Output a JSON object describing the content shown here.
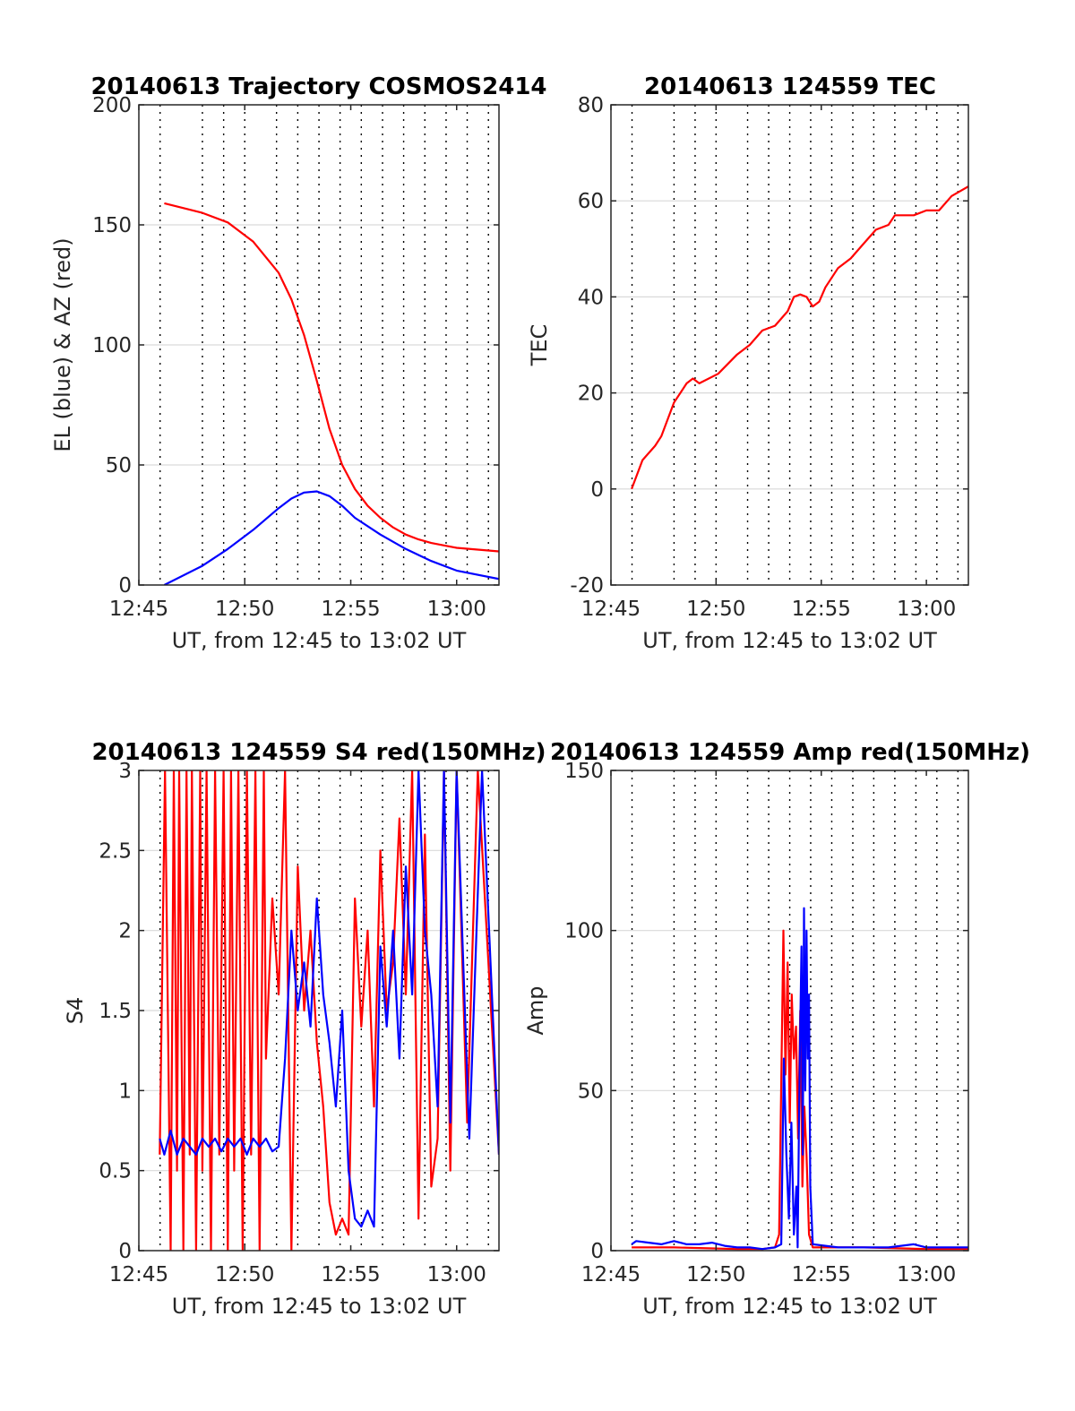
{
  "colors": {
    "red": "#ff0000",
    "blue": "#0000ff",
    "grid": "#d9d9d9",
    "dotted": "#000000",
    "axis": "#262626"
  },
  "chart_data": [
    {
      "type": "line",
      "title": "20140613 Trajectory COSMOS2414",
      "xlabel": "UT, from 12:45 to 13:02 UT",
      "ylabel": "EL (blue) & AZ (red)",
      "xlim": [
        12.75,
        13.0333
      ],
      "ylim": [
        0,
        200
      ],
      "x_ticks": [
        "12:45",
        "12:50",
        "12:55",
        "13:00"
      ],
      "y_ticks": [
        "0",
        "50",
        "100",
        "150",
        "200"
      ],
      "grid": true,
      "series": [
        {
          "color": "red",
          "x": [
            12.77,
            12.8,
            12.82,
            12.84,
            12.86,
            12.87,
            12.88,
            12.89,
            12.9,
            12.91,
            12.92,
            12.93,
            12.94,
            12.95,
            12.96,
            12.97,
            12.98,
            12.99,
            13.0,
            13.0333
          ],
          "y": [
            159,
            155,
            151,
            143,
            130,
            119,
            104,
            85,
            65,
            50,
            40,
            33,
            28,
            24,
            21,
            19,
            17.5,
            16.5,
            15.5,
            14
          ]
        },
        {
          "color": "blue",
          "x": [
            12.77,
            12.8,
            12.82,
            12.84,
            12.86,
            12.87,
            12.88,
            12.89,
            12.9,
            12.91,
            12.92,
            12.94,
            12.96,
            12.98,
            13.0,
            13.0333
          ],
          "y": [
            0,
            8,
            15,
            23,
            32,
            36,
            38.5,
            39,
            37,
            33,
            28,
            21,
            15,
            10,
            6,
            2.5
          ]
        }
      ]
    },
    {
      "type": "line",
      "title": "20140613 124559 TEC",
      "xlabel": "UT, from 12:45 to 13:02 UT",
      "ylabel": "TEC",
      "xlim": [
        12.75,
        13.0333
      ],
      "ylim": [
        -20,
        80
      ],
      "x_ticks": [
        "12:45",
        "12:50",
        "12:55",
        "13:00"
      ],
      "y_ticks": [
        "-20",
        "0",
        "20",
        "40",
        "60",
        "80"
      ],
      "grid": true,
      "series": [
        {
          "color": "red",
          "x": [
            12.7664,
            12.775,
            12.785,
            12.79,
            12.8,
            12.81,
            12.815,
            12.82,
            12.835,
            12.85,
            12.86,
            12.87,
            12.88,
            12.89,
            12.895,
            12.9,
            12.905,
            12.91,
            12.915,
            12.92,
            12.93,
            12.94,
            12.95,
            12.96,
            12.97,
            12.975,
            12.99,
            13.0,
            13.01,
            13.02,
            13.0333
          ],
          "y": [
            0,
            6,
            9,
            11,
            18,
            22,
            23,
            22,
            24,
            28,
            30,
            33,
            34,
            37,
            40,
            40.5,
            40,
            38,
            39,
            42,
            46,
            48,
            51,
            54,
            55,
            57,
            57,
            58,
            58,
            61,
            63
          ]
        }
      ]
    },
    {
      "type": "line",
      "title": "20140613 124559 S4 red(150MHz)",
      "xlabel": "UT, from 12:45 to 13:02 UT",
      "ylabel": "S4",
      "xlim": [
        12.75,
        13.0333
      ],
      "ylim": [
        0,
        3
      ],
      "x_ticks": [
        "12:45",
        "12:50",
        "12:55",
        "13:00"
      ],
      "y_ticks": [
        "0",
        "0.5",
        "1",
        "1.5",
        "2",
        "2.5",
        "3"
      ],
      "grid": true,
      "series": [
        {
          "color": "red",
          "x": [
            12.7664,
            12.7706,
            12.775,
            12.7775,
            12.78,
            12.7817,
            12.785,
            12.7875,
            12.79,
            12.7917,
            12.795,
            12.7983,
            12.8,
            12.8033,
            12.8067,
            12.81,
            12.8133,
            12.8167,
            12.82,
            12.8225,
            12.825,
            12.8283,
            12.8317,
            12.835,
            12.8383,
            12.8417,
            12.845,
            12.8483,
            12.85,
            12.855,
            12.86,
            12.865,
            12.87,
            12.875,
            12.88,
            12.885,
            12.89,
            12.895,
            12.9,
            12.905,
            12.91,
            12.915,
            12.92,
            12.925,
            12.93,
            12.935,
            12.94,
            12.945,
            12.95,
            12.955,
            12.96,
            12.965,
            12.97,
            12.975,
            12.98,
            12.985,
            12.99,
            12.995,
            13.0,
            13.0083,
            13.0167,
            13.0333
          ],
          "y": [
            0.6,
            3,
            0,
            3,
            0.5,
            3,
            0,
            3,
            0.6,
            3,
            0,
            3,
            0.5,
            3,
            0,
            3,
            0.6,
            3,
            0,
            3,
            0.5,
            3,
            0,
            3,
            0.6,
            3,
            0,
            3,
            1.2,
            2.2,
            1.6,
            3,
            0,
            2.4,
            1.5,
            2.0,
            1.3,
            0.9,
            0.3,
            0.1,
            0.2,
            0.1,
            2.2,
            1.4,
            2.0,
            0.9,
            2.5,
            1.5,
            1.8,
            2.7,
            1.6,
            3,
            0.2,
            2.6,
            0.4,
            0.7,
            3,
            0.5,
            3,
            0.8,
            3,
            0.6
          ]
        },
        {
          "color": "blue",
          "x": [
            12.7664,
            12.77,
            12.775,
            12.78,
            12.785,
            12.79,
            12.795,
            12.8,
            12.805,
            12.81,
            12.815,
            12.82,
            12.825,
            12.83,
            12.835,
            12.84,
            12.845,
            12.85,
            12.855,
            12.86,
            12.865,
            12.87,
            12.875,
            12.88,
            12.885,
            12.89,
            12.895,
            12.9,
            12.905,
            12.91,
            12.915,
            12.92,
            12.925,
            12.93,
            12.935,
            12.94,
            12.945,
            12.95,
            12.955,
            12.96,
            12.965,
            12.97,
            12.975,
            12.98,
            12.985,
            12.99,
            12.995,
            13.0,
            13.01,
            13.02,
            13.0333
          ],
          "y": [
            0.7,
            0.6,
            0.75,
            0.6,
            0.7,
            0.65,
            0.6,
            0.7,
            0.65,
            0.7,
            0.62,
            0.7,
            0.65,
            0.7,
            0.6,
            0.7,
            0.65,
            0.7,
            0.62,
            0.65,
            1.2,
            2.0,
            1.5,
            1.8,
            1.4,
            2.2,
            1.6,
            1.3,
            0.9,
            1.5,
            0.5,
            0.2,
            0.15,
            0.25,
            0.15,
            1.9,
            1.4,
            2.0,
            1.2,
            2.4,
            1.6,
            3.0,
            2.0,
            1.6,
            0.9,
            3.0,
            0.8,
            3.0,
            0.7,
            3.0,
            0.6
          ]
        }
      ]
    },
    {
      "type": "line",
      "title": "20140613 124559 Amp red(150MHz)",
      "xlabel": "UT, from 12:45 to 13:02 UT",
      "ylabel": "Amp",
      "xlim": [
        12.75,
        13.0333
      ],
      "ylim": [
        0,
        150
      ],
      "x_ticks": [
        "12:45",
        "12:50",
        "12:55",
        "13:00"
      ],
      "y_ticks": [
        "0",
        "50",
        "100",
        "150"
      ],
      "grid": true,
      "series": [
        {
          "color": "red",
          "x": [
            12.7664,
            12.8,
            12.85,
            12.87,
            12.88,
            12.8833,
            12.8867,
            12.8883,
            12.89,
            12.8917,
            12.8933,
            12.895,
            12.8967,
            12.8983,
            12.9,
            12.9017,
            12.9033,
            12.905,
            12.907,
            12.91,
            12.95,
            13.0,
            13.0333
          ],
          "y": [
            1,
            1,
            0.5,
            0.5,
            1,
            5,
            100,
            55,
            90,
            40,
            80,
            60,
            70,
            35,
            75,
            20,
            45,
            30,
            5,
            1,
            1,
            0.5,
            0.5
          ]
        },
        {
          "color": "blue",
          "x": [
            12.7664,
            12.77,
            12.78,
            12.79,
            12.8,
            12.81,
            12.82,
            12.83,
            12.84,
            12.85,
            12.86,
            12.87,
            12.88,
            12.885,
            12.887,
            12.889,
            12.891,
            12.893,
            12.895,
            12.897,
            12.898,
            12.899,
            12.9,
            12.901,
            12.902,
            12.903,
            12.904,
            12.905,
            12.906,
            12.907,
            12.908,
            12.91,
            12.93,
            12.95,
            12.97,
            12.99,
            13.0,
            13.0333
          ],
          "y": [
            2,
            3,
            2.5,
            2,
            3,
            2,
            2,
            2.5,
            1.5,
            1,
            1,
            0.5,
            1,
            2,
            60,
            30,
            10,
            40,
            5,
            20,
            1,
            40,
            70,
            95,
            30,
            107,
            50,
            100,
            60,
            80,
            20,
            2,
            1,
            1,
            1,
            2,
            1,
            1
          ]
        }
      ]
    }
  ]
}
